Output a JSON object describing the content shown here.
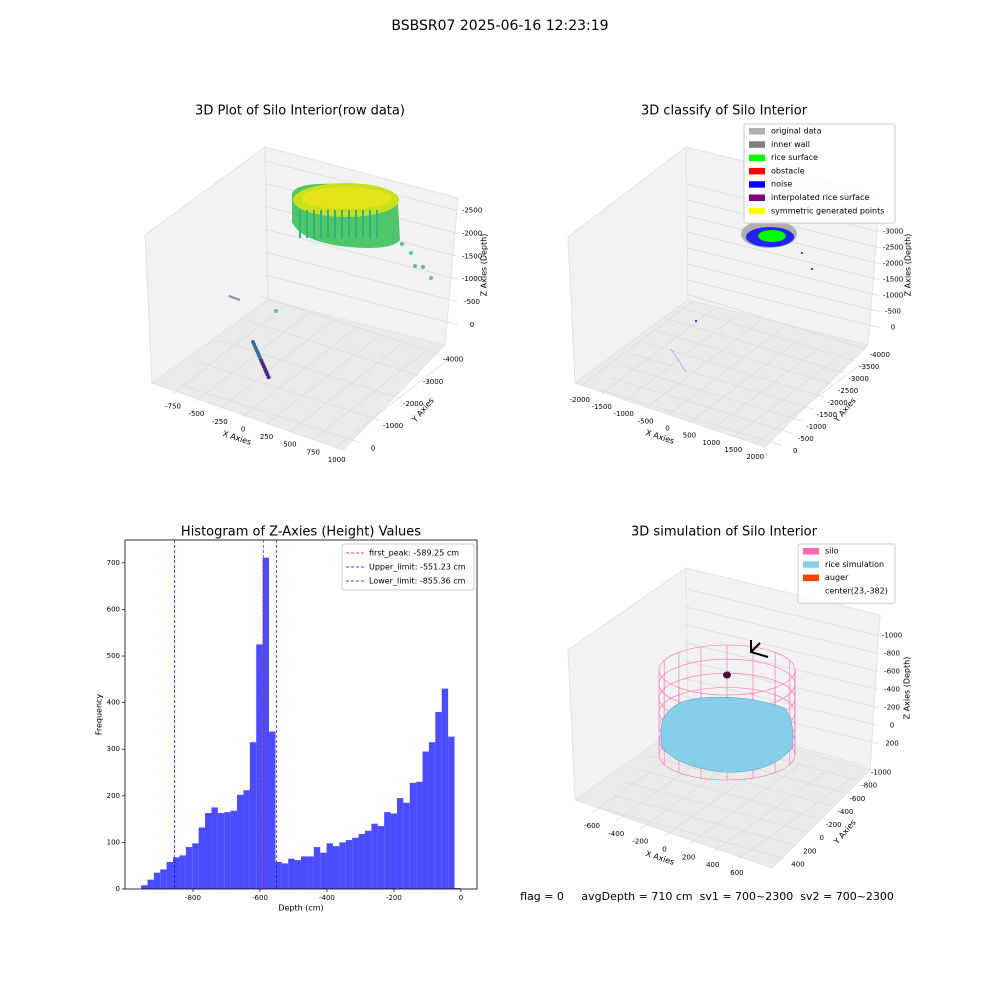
{
  "title": "BSBSR07 2025-06-16 12:23:19",
  "footer": "flag = 0     avgDepth = 710 cm  sv1 = 700~2300  sv2 = 700~2300",
  "chart_data": [
    {
      "type": "scatter3d",
      "title": "3D Plot of Silo Interior(row data)",
      "x_label": "X Axies",
      "y_label": "Y Axies",
      "z_label": "Z Axies (Depth)",
      "xlim": [
        -900,
        1100
      ],
      "xticks": [
        -750,
        -500,
        -250,
        0,
        250,
        500,
        750,
        1000
      ],
      "ylim": [
        -4300,
        300
      ],
      "yticks": [
        0,
        -1000,
        -2000,
        -3000,
        -4000
      ],
      "zlim": [
        -2800,
        200
      ],
      "zticks": [
        0,
        -500,
        -1000,
        -1500,
        -2000,
        -2500
      ]
    },
    {
      "type": "scatter3d",
      "title": "3D classify of Silo Interior",
      "x_label": "X Axies",
      "y_label": "Y Axies",
      "z_label": "Z Axies (Depth)",
      "xlim": [
        -2200,
        2200
      ],
      "xticks": [
        -2000,
        -1500,
        -1000,
        -500,
        0,
        500,
        1000,
        1500,
        2000
      ],
      "ylim": [
        -4200,
        200
      ],
      "yticks": [
        0,
        -500,
        -1000,
        -1500,
        -2000,
        -2500,
        -3000,
        -3500,
        -4000
      ],
      "zlim": [
        -3300,
        300
      ],
      "zticks": [
        0,
        -500,
        -1000,
        -1500,
        -2000,
        -2500,
        -3000
      ],
      "legend": [
        {
          "name": "original data",
          "color": "#b0b0b0"
        },
        {
          "name": "inner wall",
          "color": "#808080"
        },
        {
          "name": "rice surface",
          "color": "#00ff00"
        },
        {
          "name": "obstacle",
          "color": "#ff0000"
        },
        {
          "name": "noise",
          "color": "#0000ff"
        },
        {
          "name": "interpolated rice surface",
          "color": "#800080"
        },
        {
          "name": "symmetric generated points",
          "color": "#ffff00"
        }
      ]
    },
    {
      "type": "histogram",
      "title": "Histogram of Z-Axies (Height) Values",
      "x_label": "Depth (cm)",
      "y_label": "Frequency",
      "color": "#0000ff",
      "bins": [
        -955,
        -935.9,
        -916.8,
        -897.7,
        -878.6,
        -859.5,
        -840.4,
        -821.3,
        -802.2,
        -783.1,
        -764,
        -744.9,
        -725.8,
        -706.7,
        -687.6,
        -668.5,
        -649.4,
        -630.3,
        -611.2,
        -592.1,
        -573,
        -553.9,
        -534.8,
        -515.7,
        -496.6,
        -477.5,
        -458.4,
        -439.3,
        -420.2,
        -401.1,
        -382,
        -362.9,
        -343.8,
        -324.7,
        -305.6,
        -286.5,
        -267.4,
        -248.3,
        -229.2,
        -210.1,
        -191,
        -171.9,
        -152.8,
        -133.7,
        -114.6,
        -95.5,
        -76.4,
        -57.3,
        -38.2,
        -19.1,
        0
      ],
      "counts": [
        8,
        20,
        35,
        42,
        58,
        68,
        72,
        90,
        98,
        132,
        163,
        175,
        163,
        165,
        168,
        202,
        212,
        315,
        525,
        711,
        338,
        58,
        55,
        65,
        62,
        70,
        70,
        90,
        78,
        98,
        92,
        100,
        105,
        110,
        118,
        125,
        140,
        135,
        165,
        162,
        195,
        185,
        228,
        230,
        295,
        315,
        380,
        430,
        327,
        2
      ],
      "xlim": [
        -1003,
        48
      ],
      "xticks": [
        -800,
        -600,
        -400,
        -200,
        0
      ],
      "ylim": [
        0,
        749
      ],
      "yticks": [
        0,
        100,
        200,
        300,
        400,
        500,
        600,
        700
      ],
      "vlines": [
        {
          "label": "first_peak: -589.25 cm",
          "value": -589.25,
          "color": "#ff0000"
        },
        {
          "label": "Upper_limit: -551.23 cm",
          "value": -551.23,
          "color": "#0000ff"
        },
        {
          "label": "Lower_limit: -855.36 cm",
          "value": -855.36,
          "color": "#0000ff"
        }
      ]
    },
    {
      "type": "surface3d",
      "title": "3D simulation of Silo Interior",
      "x_label": "X Axies",
      "y_label": "Y Axies",
      "z_label": "Z Axies (Depth)",
      "xlim": [
        -700,
        700
      ],
      "xticks": [
        -600,
        -400,
        -200,
        0,
        200,
        400,
        600
      ],
      "ylim": [
        -1100,
        500
      ],
      "yticks": [
        400,
        200,
        0,
        -200,
        -400,
        -600,
        -800,
        -1000
      ],
      "zlim": [
        -1150,
        350
      ],
      "zticks": [
        200,
        0,
        -200,
        -400,
        -600,
        -800,
        -1000
      ],
      "legend": [
        {
          "name": "silo",
          "color": "#ff69b4"
        },
        {
          "name": "rice simulation",
          "color": "#87ceeb"
        },
        {
          "name": "auger",
          "color": "#ff4500"
        },
        {
          "name": "center(23,-382)",
          "color": "#ffffff"
        }
      ]
    }
  ]
}
